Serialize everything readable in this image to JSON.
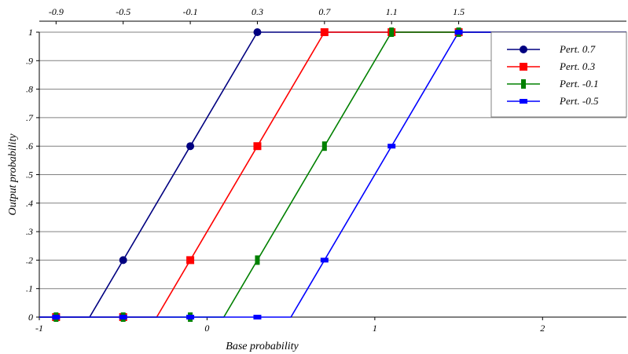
{
  "chart_data": {
    "type": "line",
    "xlabel": "Base probability",
    "ylabel": "Output probability",
    "xlim": [
      -1,
      2.5
    ],
    "ylim": [
      0,
      1
    ],
    "x_ticks_bottom": [
      "-1",
      "0",
      "1",
      "2"
    ],
    "x_ticks_top": [
      "-0.9",
      "-0.5",
      "-0.1",
      "0.3",
      "0.7",
      "1.1",
      "1.5"
    ],
    "y_ticks": [
      "0",
      ".1",
      ".2",
      ".3",
      ".4",
      ".5",
      ".6",
      ".7",
      ".8",
      ".9",
      "1"
    ],
    "grid": "horizontal",
    "legend_position": "top-right",
    "series": [
      {
        "name": "Pert. 0.7",
        "color": "#000080",
        "marker": "circle",
        "line": [
          [
            -1,
            0
          ],
          [
            -0.7,
            0
          ],
          [
            0.3,
            1
          ],
          [
            2.5,
            1
          ]
        ],
        "points": [
          [
            -0.9,
            0
          ],
          [
            -0.5,
            0.2
          ],
          [
            -0.1,
            0.6
          ],
          [
            0.3,
            1
          ],
          [
            0.7,
            1
          ],
          [
            1.1,
            1
          ],
          [
            1.5,
            1
          ]
        ]
      },
      {
        "name": "Pert. 0.3",
        "color": "#ff0000",
        "marker": "square",
        "line": [
          [
            -1,
            0
          ],
          [
            -0.3,
            0
          ],
          [
            0.7,
            1
          ],
          [
            2.5,
            1
          ]
        ],
        "points": [
          [
            -0.9,
            0
          ],
          [
            -0.5,
            0
          ],
          [
            -0.1,
            0.2
          ],
          [
            0.3,
            0.6
          ],
          [
            0.7,
            1
          ],
          [
            1.1,
            1
          ],
          [
            1.5,
            1
          ]
        ]
      },
      {
        "name": "Pert. -0.1",
        "color": "#008000",
        "marker": "bar",
        "line": [
          [
            -1,
            0
          ],
          [
            0.1,
            0
          ],
          [
            1.1,
            1
          ],
          [
            2.5,
            1
          ]
        ],
        "points": [
          [
            -0.9,
            0
          ],
          [
            -0.5,
            0
          ],
          [
            -0.1,
            0
          ],
          [
            0.3,
            0.2
          ],
          [
            0.7,
            0.6
          ],
          [
            1.1,
            1
          ],
          [
            1.5,
            1
          ]
        ]
      },
      {
        "name": "Pert. -0.5",
        "color": "#0000ff",
        "marker": "dash",
        "line": [
          [
            -1,
            0
          ],
          [
            0.5,
            0
          ],
          [
            1.5,
            1
          ],
          [
            2.5,
            1
          ]
        ],
        "points": [
          [
            -0.9,
            0
          ],
          [
            -0.5,
            0
          ],
          [
            -0.1,
            0
          ],
          [
            0.3,
            0
          ],
          [
            0.7,
            0.2
          ],
          [
            1.1,
            0.6
          ],
          [
            1.5,
            1
          ]
        ]
      }
    ]
  }
}
